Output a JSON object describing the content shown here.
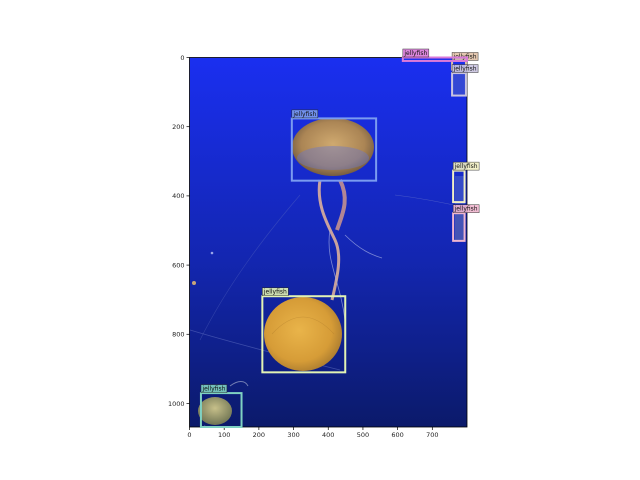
{
  "image": {
    "subject": "jellyfish in blue water",
    "background_colors": {
      "top": "#1a2ff0",
      "bottom": "#0b1a6a"
    }
  },
  "axes": {
    "xlim": [
      0,
      800
    ],
    "ylim": [
      1068,
      0
    ],
    "x_ticks": [
      0,
      100,
      200,
      300,
      400,
      500,
      600,
      700
    ],
    "y_ticks": [
      0,
      200,
      400,
      600,
      800,
      1000
    ]
  },
  "detections": [
    {
      "label": "jellyfish",
      "x1": 295,
      "y1": 176,
      "x2": 538,
      "y2": 356,
      "color": "#7b9cf0"
    },
    {
      "label": "jellyfish",
      "x1": 210,
      "y1": 690,
      "x2": 449,
      "y2": 910,
      "color": "#e2f3b4"
    },
    {
      "label": "jellyfish",
      "x1": 33,
      "y1": 970,
      "x2": 150,
      "y2": 1068,
      "color": "#7fd1c2"
    },
    {
      "label": "jellyfish",
      "x1": 760,
      "y1": 327,
      "x2": 793,
      "y2": 418,
      "color": "#f2f0c4"
    },
    {
      "label": "jellyfish",
      "x1": 760,
      "y1": 450,
      "x2": 793,
      "y2": 530,
      "color": "#f0b6cf"
    },
    {
      "label": "jellyfish",
      "x1": 757,
      "y1": 10,
      "x2": 797,
      "y2": 35,
      "color": "#e0c2a8"
    },
    {
      "label": "jellyfish",
      "x1": 757,
      "y1": 45,
      "x2": 797,
      "y2": 110,
      "color": "#c9c4df"
    },
    {
      "label": "jellyfish",
      "x1": 615,
      "y1": -5,
      "x2": 800,
      "y2": 10,
      "color": "#d97ad9"
    }
  ]
}
